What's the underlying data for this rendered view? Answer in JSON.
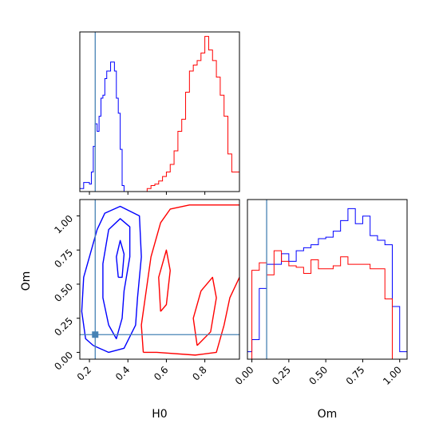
{
  "chart_data": [
    {
      "type": "histogram",
      "panel": "H0 marginal",
      "xlim": [
        0.15,
        0.98
      ],
      "ylim": [
        0,
        1.06
      ],
      "truth_line": {
        "x": 0.23,
        "color": "#4682b4"
      },
      "series": [
        {
          "color": "#0000ff",
          "bins": [
            0.15,
            0.16,
            0.17,
            0.18,
            0.19,
            0.2,
            0.21,
            0.22,
            0.23,
            0.24,
            0.25,
            0.26,
            0.27,
            0.28,
            0.29,
            0.3,
            0.31,
            0.32,
            0.33,
            0.34,
            0.35,
            0.36,
            0.37,
            0.38,
            0.39,
            0.4,
            0.41,
            0.42,
            0.43,
            0.44,
            0.45
          ],
          "values": [
            0.02,
            0.02,
            0.06,
            0.06,
            0.06,
            0.05,
            0.13,
            0.3,
            0.45,
            0.4,
            0.5,
            0.62,
            0.64,
            0.75,
            0.8,
            0.8,
            0.86,
            0.86,
            0.8,
            0.62,
            0.52,
            0.28,
            0.04,
            0.0,
            0,
            0,
            0,
            0,
            0,
            0
          ]
        },
        {
          "color": "#ff0000",
          "bins": [
            0.5,
            0.52,
            0.54,
            0.56,
            0.58,
            0.6,
            0.62,
            0.64,
            0.66,
            0.68,
            0.7,
            0.72,
            0.74,
            0.76,
            0.78,
            0.8,
            0.82,
            0.84,
            0.86,
            0.88,
            0.9,
            0.92,
            0.94,
            0.96,
            0.98
          ],
          "values": [
            0.02,
            0.04,
            0.05,
            0.07,
            0.1,
            0.13,
            0.18,
            0.27,
            0.4,
            0.48,
            0.66,
            0.8,
            0.84,
            0.87,
            0.92,
            1.03,
            0.94,
            0.87,
            0.76,
            0.64,
            0.5,
            0.25,
            0.13,
            0.13
          ]
        }
      ]
    },
    {
      "type": "contour",
      "panel": "H0 vs Om",
      "xlabel": "H0",
      "ylabel": "Om",
      "xlim": [
        0.15,
        0.98
      ],
      "ylim": [
        -0.05,
        1.12
      ],
      "xticks": [
        "0.2",
        "0.4",
        "0.6",
        "0.8"
      ],
      "xtick_values": [
        0.2,
        0.4,
        0.6,
        0.8
      ],
      "yticks": [
        "0.00",
        "0.25",
        "0.50",
        "0.75",
        "1.00"
      ],
      "ytick_values": [
        0.0,
        0.25,
        0.5,
        0.75,
        1.0
      ],
      "truth": {
        "x": 0.23,
        "y": 0.13,
        "color": "#4682b4"
      },
      "series": [
        {
          "color": "#0000ff",
          "contours": [
            [
              [
                0.22,
                0.05
              ],
              [
                0.18,
                0.1
              ],
              [
                0.16,
                0.3
              ],
              [
                0.17,
                0.55
              ],
              [
                0.2,
                0.7
              ],
              [
                0.24,
                0.9
              ],
              [
                0.28,
                1.02
              ],
              [
                0.36,
                1.07
              ],
              [
                0.46,
                1.0
              ],
              [
                0.47,
                0.7
              ],
              [
                0.45,
                0.4
              ],
              [
                0.44,
                0.2
              ],
              [
                0.38,
                0.03
              ],
              [
                0.3,
                0.0
              ],
              [
                0.22,
                0.05
              ]
            ],
            [
              [
                0.3,
                0.2
              ],
              [
                0.27,
                0.4
              ],
              [
                0.27,
                0.65
              ],
              [
                0.3,
                0.9
              ],
              [
                0.36,
                0.98
              ],
              [
                0.41,
                0.92
              ],
              [
                0.41,
                0.7
              ],
              [
                0.38,
                0.45
              ],
              [
                0.37,
                0.25
              ],
              [
                0.34,
                0.1
              ],
              [
                0.3,
                0.2
              ]
            ],
            [
              [
                0.35,
                0.55
              ],
              [
                0.34,
                0.7
              ],
              [
                0.36,
                0.82
              ],
              [
                0.38,
                0.72
              ],
              [
                0.37,
                0.55
              ],
              [
                0.35,
                0.55
              ]
            ]
          ]
        },
        {
          "color": "#ff0000",
          "contours": [
            [
              [
                0.48,
                0.0
              ],
              [
                0.47,
                0.2
              ],
              [
                0.49,
                0.4
              ],
              [
                0.52,
                0.7
              ],
              [
                0.57,
                0.95
              ],
              [
                0.62,
                1.05
              ],
              [
                0.72,
                1.08
              ],
              [
                0.98,
                1.08
              ]
            ],
            [
              [
                0.98,
                0.55
              ],
              [
                0.93,
                0.4
              ],
              [
                0.9,
                0.2
              ],
              [
                0.86,
                0.0
              ],
              [
                0.75,
                -0.02
              ],
              [
                0.55,
                0.0
              ],
              [
                0.48,
                0.0
              ]
            ],
            [
              [
                0.57,
                0.3
              ],
              [
                0.56,
                0.55
              ],
              [
                0.6,
                0.75
              ],
              [
                0.62,
                0.6
              ],
              [
                0.6,
                0.35
              ],
              [
                0.57,
                0.3
              ]
            ],
            [
              [
                0.76,
                0.05
              ],
              [
                0.74,
                0.25
              ],
              [
                0.78,
                0.45
              ],
              [
                0.84,
                0.55
              ],
              [
                0.86,
                0.4
              ],
              [
                0.83,
                0.15
              ],
              [
                0.76,
                0.05
              ]
            ]
          ]
        }
      ]
    },
    {
      "type": "histogram",
      "panel": "Om marginal",
      "xlabel": "Om",
      "xlim": [
        -0.03,
        1.05
      ],
      "ylim": [
        0,
        1.06
      ],
      "xticks": [
        "0.00",
        "0.25",
        "0.50",
        "0.75",
        "1.00"
      ],
      "xtick_values": [
        0.0,
        0.25,
        0.5,
        0.75,
        1.0
      ],
      "truth_line": {
        "x": 0.1,
        "color": "#4682b4"
      },
      "series": [
        {
          "color": "#0000ff",
          "bins": [
            -0.03,
            0.0,
            0.05,
            0.1,
            0.15,
            0.2,
            0.25,
            0.3,
            0.35,
            0.4,
            0.45,
            0.5,
            0.55,
            0.6,
            0.65,
            0.7,
            0.75,
            0.8,
            0.85,
            0.9,
            0.95,
            1.0,
            1.05
          ],
          "values": [
            0.05,
            0.13,
            0.47,
            0.63,
            0.63,
            0.7,
            0.65,
            0.72,
            0.74,
            0.76,
            0.8,
            0.81,
            0.85,
            0.92,
            1.0,
            0.9,
            0.95,
            0.82,
            0.79,
            0.76,
            0.35,
            0.05
          ]
        },
        {
          "color": "#ff0000",
          "bins": [
            0.0,
            0.05,
            0.1,
            0.15,
            0.2,
            0.25,
            0.3,
            0.35,
            0.4,
            0.45,
            0.5,
            0.55,
            0.6,
            0.65,
            0.7,
            0.75,
            0.8,
            0.85,
            0.9,
            0.95,
            1.0
          ],
          "values": [
            0.59,
            0.64,
            0.56,
            0.72,
            0.65,
            0.62,
            0.61,
            0.57,
            0.66,
            0.6,
            0.6,
            0.62,
            0.68,
            0.63,
            0.63,
            0.63,
            0.6,
            0.6,
            0.4,
            0.0
          ]
        }
      ]
    }
  ]
}
